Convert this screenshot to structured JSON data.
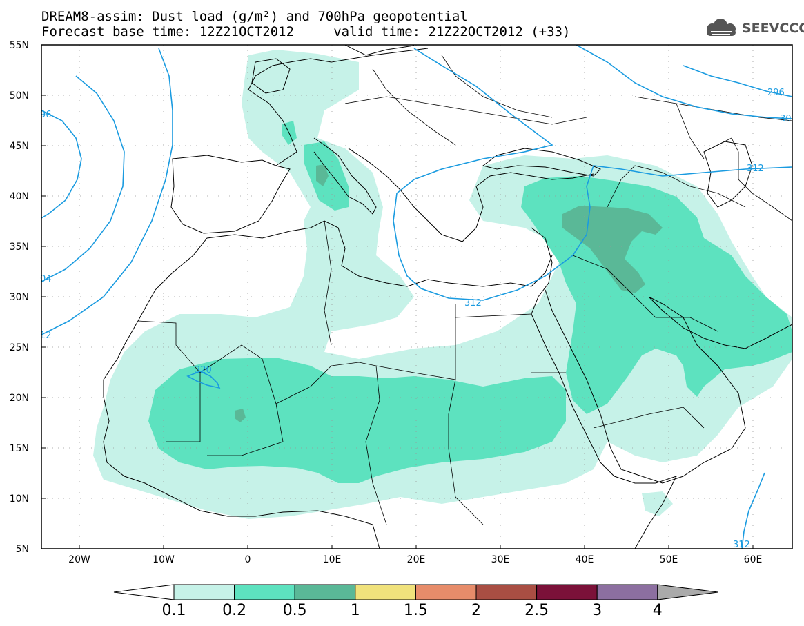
{
  "header": {
    "title_line1": "DREAM8-assim: Dust load (g/m²) and 700hPa geopotential",
    "title_line2": "Forecast base time: 12Z21OCT2012     valid time: 21Z22OCT2012 (+33)",
    "logo_text": "SEEVCCC"
  },
  "axes": {
    "lat_labels": [
      "55N",
      "50N",
      "45N",
      "40N",
      "35N",
      "30N",
      "25N",
      "20N",
      "15N",
      "10N",
      "5N"
    ],
    "lon_labels": [
      "20W",
      "10W",
      "0",
      "10E",
      "20E",
      "30E",
      "40E",
      "50E",
      "60E"
    ]
  },
  "contour_labels": {
    "c296_top": "296",
    "c30_right": "30",
    "c312_east": "312",
    "c312_med": "312",
    "c320": "320",
    "c96_left": "96",
    "c04_left": "04",
    "c12_left": "12",
    "c312_bottom": "312"
  },
  "colorbar": {
    "labels": [
      "0.1",
      "0.2",
      "0.5",
      "1",
      "1.5",
      "2",
      "2.5",
      "3",
      "4"
    ],
    "colors": [
      "#c6f2e8",
      "#5de2bf",
      "#5ab897",
      "#f0e27c",
      "#e78c6a",
      "#a94e43",
      "#7b1139",
      "#8c6fa0",
      "#aaaaaa"
    ]
  },
  "colors": {
    "contour_line": "#1a9be0",
    "dust_light": "#c6f2e8",
    "dust_mid": "#5de2bf",
    "dust_dark": "#5ab897"
  }
}
